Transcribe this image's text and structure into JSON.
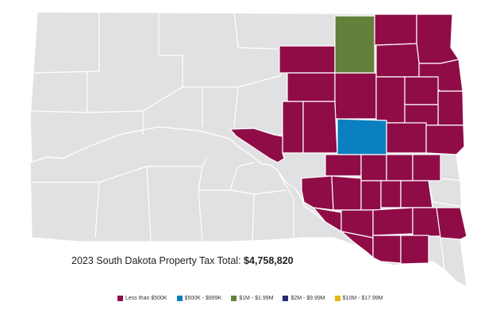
{
  "map": {
    "state": "South Dakota",
    "colors": {
      "base": "#e1e1e3",
      "less_than_500k": "#8f0c47",
      "500k_999k": "#0a80c0",
      "1m_199m": "#63813a",
      "2m_999m": "#262b70",
      "10m_1799m": "#e4b60f"
    }
  },
  "total": {
    "label": "2023 South Dakota Property Tax Total:",
    "value": "$4,758,820"
  },
  "legend": [
    {
      "label": "Less than $500K",
      "color": "#8f0c47"
    },
    {
      "label": "$500K - $999K",
      "color": "#0a80c0"
    },
    {
      "label": "$1M - $1.99M",
      "color": "#63813a"
    },
    {
      "label": "$2M - $9.99M",
      "color": "#262b70"
    },
    {
      "label": "$10M - $17.99M",
      "color": "#e4b60f"
    }
  ]
}
